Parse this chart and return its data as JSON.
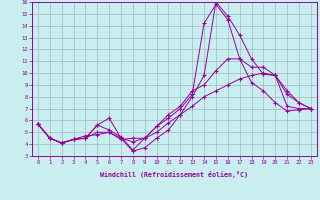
{
  "title": "",
  "xlabel": "Windchill (Refroidissement éolien,°C)",
  "ylabel": "",
  "background_color": "#c8eef0",
  "line_color": "#990099",
  "grid_color": "#a0b8c0",
  "xlim": [
    -0.5,
    23.5
  ],
  "ylim": [
    3,
    16
  ],
  "yticks": [
    3,
    4,
    5,
    6,
    7,
    8,
    9,
    10,
    11,
    12,
    13,
    14,
    15,
    16
  ],
  "xticks": [
    0,
    1,
    2,
    3,
    4,
    5,
    6,
    7,
    8,
    9,
    10,
    11,
    12,
    13,
    14,
    15,
    16,
    17,
    18,
    19,
    20,
    21,
    22,
    23
  ],
  "lines": [
    [
      5.7,
      4.5,
      4.1,
      4.4,
      4.5,
      5.6,
      6.2,
      4.5,
      3.4,
      3.7,
      4.5,
      5.2,
      6.5,
      8.0,
      9.8,
      16.0,
      14.8,
      13.2,
      11.2,
      9.9,
      9.8,
      7.2,
      7.0,
      7.0
    ],
    [
      5.7,
      4.5,
      4.1,
      4.4,
      4.5,
      5.6,
      5.2,
      4.6,
      3.5,
      4.5,
      5.5,
      6.2,
      7.0,
      8.2,
      14.2,
      15.8,
      14.5,
      11.2,
      9.2,
      8.5,
      7.5,
      6.8,
      6.9,
      7.0
    ],
    [
      5.7,
      4.5,
      4.1,
      4.4,
      4.5,
      5.0,
      5.0,
      4.4,
      4.5,
      4.5,
      5.5,
      6.5,
      7.2,
      8.5,
      9.0,
      10.2,
      11.2,
      11.2,
      10.5,
      10.5,
      9.8,
      8.2,
      7.5,
      7.0
    ],
    [
      5.7,
      4.5,
      4.1,
      4.4,
      4.7,
      4.8,
      5.0,
      4.5,
      4.2,
      4.5,
      5.0,
      5.8,
      6.5,
      7.2,
      8.0,
      8.5,
      9.0,
      9.5,
      9.8,
      10.0,
      9.8,
      8.5,
      7.5,
      7.0
    ]
  ]
}
